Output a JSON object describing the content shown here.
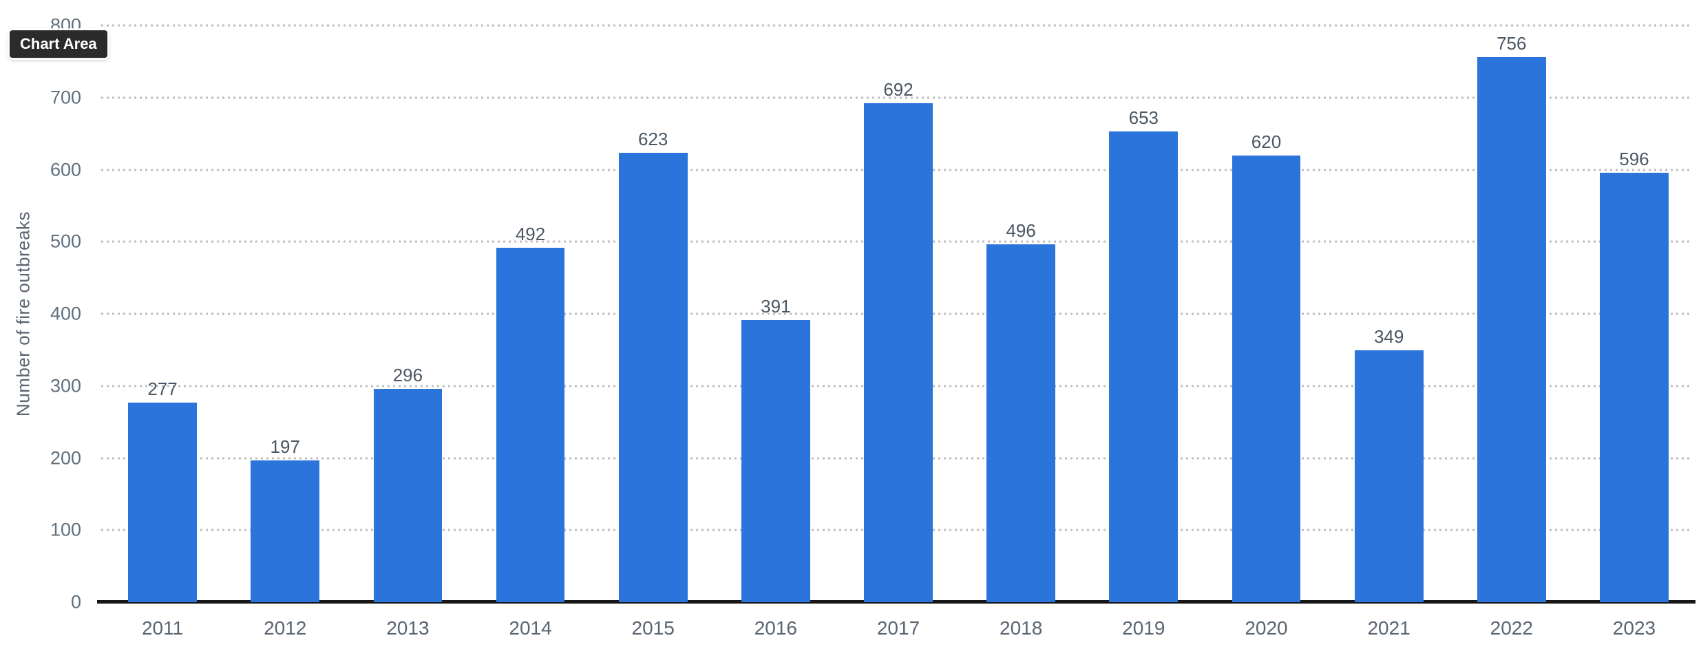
{
  "tooltip": {
    "label": "Chart Area"
  },
  "colors": {
    "bar": "#2b74dc",
    "gridline": "#bdbdbd",
    "axis_line": "#161616",
    "tick_text": "#60707e",
    "value_text": "#4a5763",
    "x_label_text": "#5a6572",
    "tooltip_bg": "#2b2b2b",
    "tooltip_text": "#ffffff"
  },
  "chart_data": {
    "type": "bar",
    "categories": [
      "2011",
      "2012",
      "2013",
      "2014",
      "2015",
      "2016",
      "2017",
      "2018",
      "2019",
      "2020",
      "2021",
      "2022",
      "2023"
    ],
    "values": [
      277,
      197,
      296,
      492,
      623,
      391,
      692,
      496,
      653,
      620,
      349,
      756,
      596
    ],
    "title": "",
    "xlabel": "",
    "ylabel": "Number of fire outbreaks",
    "ylim": [
      0,
      800
    ],
    "yticks": [
      0,
      100,
      200,
      300,
      400,
      500,
      600,
      700,
      800
    ],
    "grid": "horizontal-dotted",
    "legend_position": "none",
    "value_labels_shown": true,
    "bar_color": "#2b74dc"
  }
}
